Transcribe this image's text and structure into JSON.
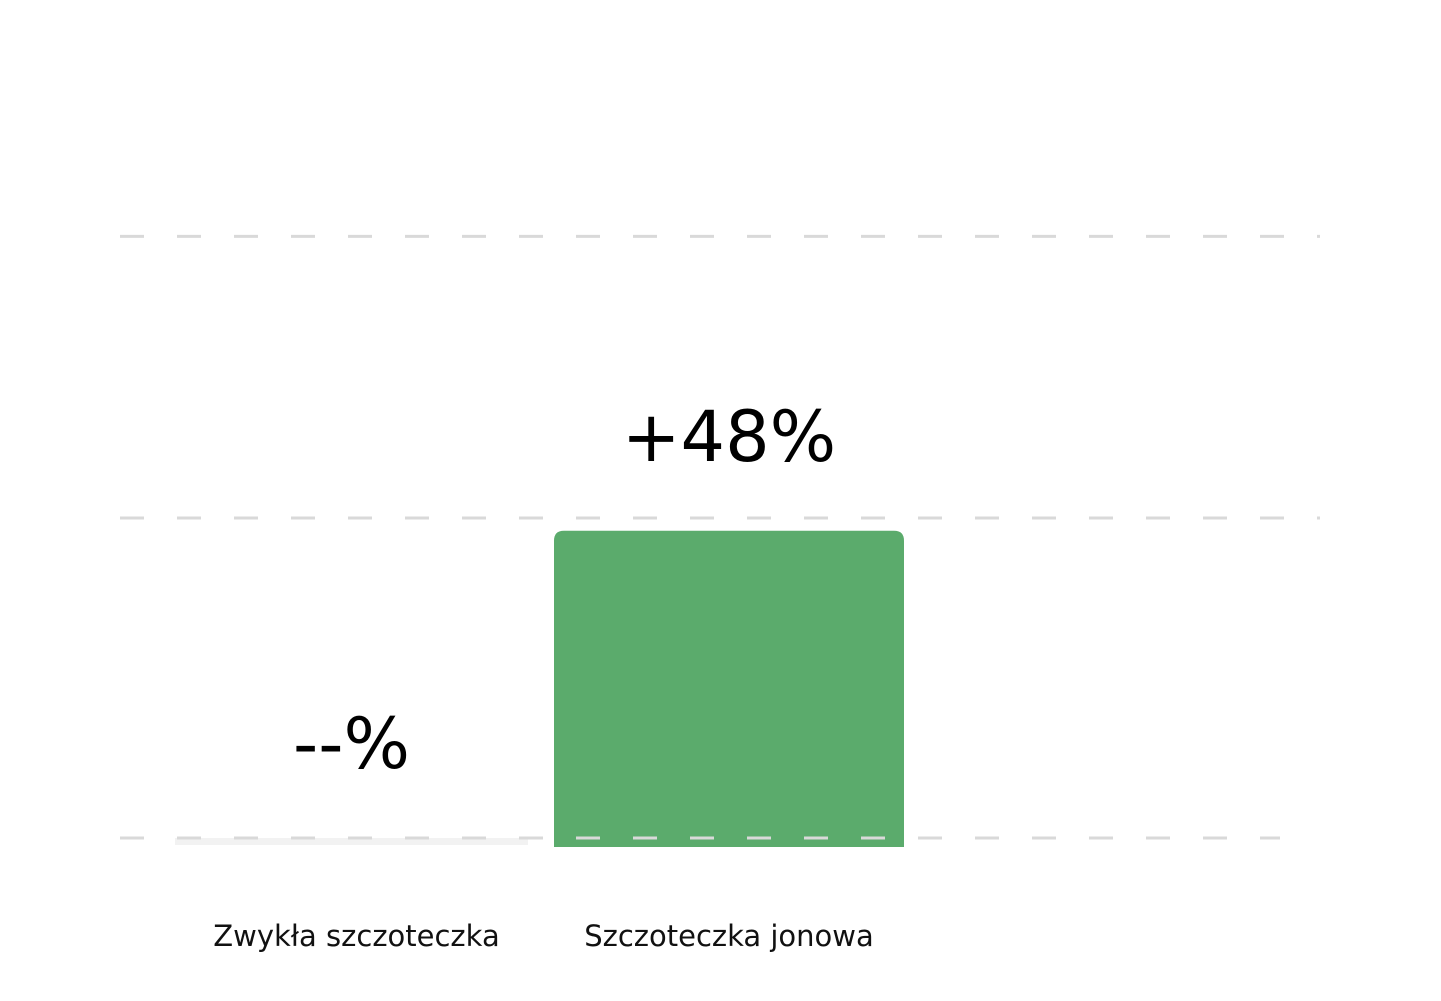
{
  "chart_data": {
    "type": "bar",
    "categories": [
      "Zwykła szczoteczka",
      "Szczoteczka jonowa"
    ],
    "values": [
      0,
      48
    ],
    "data_labels": [
      "--%",
      "+48%"
    ],
    "title": "",
    "xlabel": "",
    "ylabel": "",
    "ylim": [
      0,
      100
    ],
    "gridlines": [
      0,
      50,
      94
    ],
    "grid": true,
    "grid_style": "dashed",
    "colors": {
      "bar_empty": "#f2f2f2",
      "bar": "#5bab6c",
      "grid": "#d9d9d9"
    }
  }
}
